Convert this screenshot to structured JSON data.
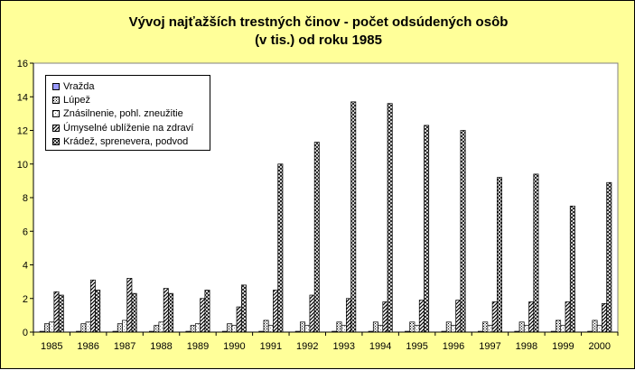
{
  "chart_data": {
    "type": "bar",
    "title": "Vývoj najťažších trestných činov - počet odsúdených osôb\n(v tis.) od roku 1985",
    "xlabel": "",
    "ylabel": "",
    "ylim": [
      0,
      16
    ],
    "yticks": [
      "0",
      "2",
      "4",
      "6",
      "8",
      "10",
      "12",
      "14",
      "16"
    ],
    "grid": false,
    "legend_position": "top-left",
    "categories": [
      "1985",
      "1986",
      "1987",
      "1988",
      "1989",
      "1990",
      "1991",
      "1992",
      "1993",
      "1994",
      "1995",
      "1996",
      "1997",
      "1998",
      "1999",
      "2000"
    ],
    "series": [
      {
        "name": "Vražda",
        "color": "#9999ff",
        "pattern": "solid",
        "values": [
          0.05,
          0.05,
          0.05,
          0.05,
          0.05,
          0.05,
          0.05,
          0.05,
          0.05,
          0.05,
          0.05,
          0.05,
          0.05,
          0.05,
          0.05,
          0.05
        ]
      },
      {
        "name": "Lúpež",
        "color": "#ffffff",
        "pattern": "dots",
        "values": [
          0.5,
          0.5,
          0.5,
          0.4,
          0.4,
          0.5,
          0.7,
          0.6,
          0.6,
          0.6,
          0.6,
          0.6,
          0.6,
          0.6,
          0.7,
          0.7
        ]
      },
      {
        "name": "Znásilnenie, pohl. zneužitie",
        "color": "#ffffff",
        "pattern": "light",
        "values": [
          0.6,
          0.6,
          0.7,
          0.6,
          0.5,
          0.4,
          0.4,
          0.4,
          0.4,
          0.4,
          0.4,
          0.4,
          0.4,
          0.4,
          0.4,
          0.4
        ]
      },
      {
        "name": "Úmyselné ublíženie na zdraví",
        "color": "#ffffff",
        "pattern": "diag",
        "values": [
          2.4,
          3.1,
          3.2,
          2.6,
          2.0,
          1.5,
          2.5,
          2.2,
          2.0,
          1.8,
          1.9,
          1.9,
          1.8,
          1.8,
          1.8,
          1.7
        ]
      },
      {
        "name": "Krádež, sprenevera, podvod",
        "color": "#ffffff",
        "pattern": "cross",
        "values": [
          2.2,
          2.5,
          2.3,
          2.3,
          2.5,
          2.8,
          10.0,
          11.3,
          13.7,
          13.6,
          12.3,
          12.0,
          9.2,
          9.4,
          7.5,
          8.9
        ]
      }
    ]
  }
}
